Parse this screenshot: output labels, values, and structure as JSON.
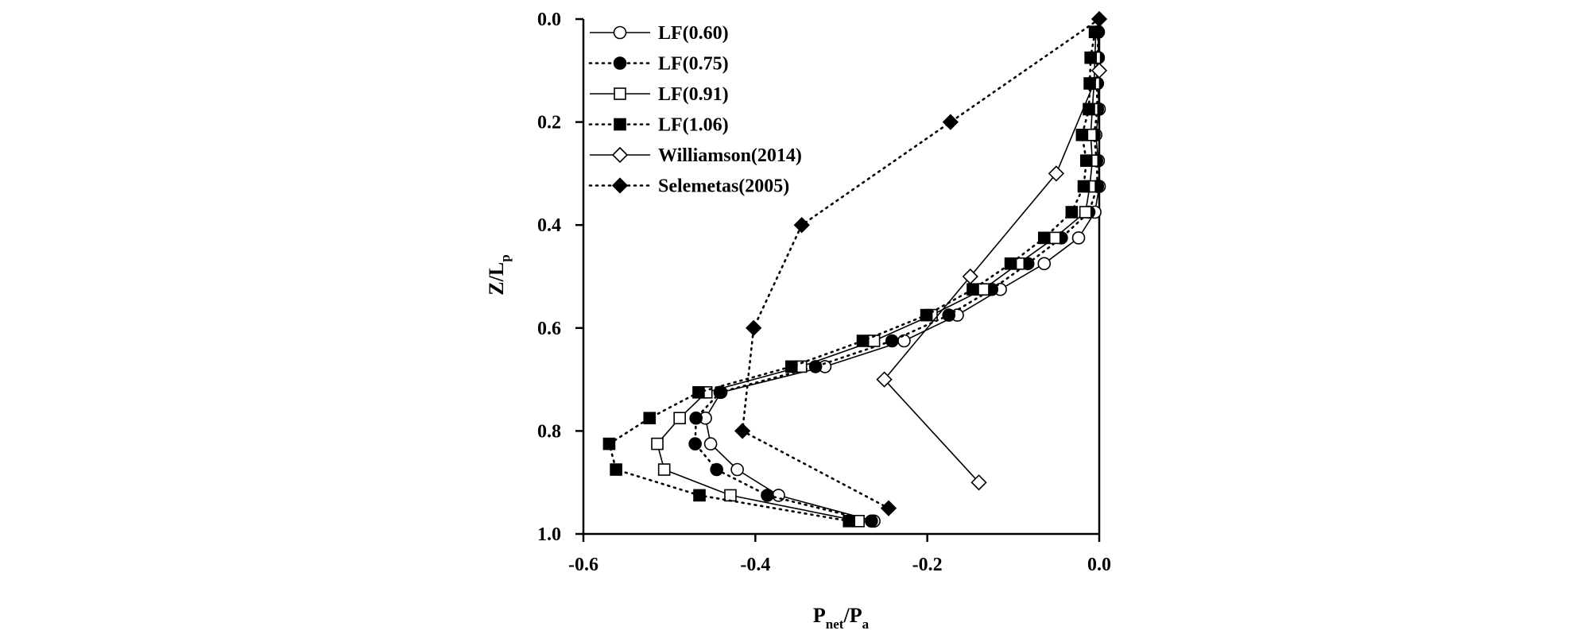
{
  "chart_data": {
    "type": "line",
    "title": "",
    "xlabel": {
      "main": "P",
      "sub1": "net",
      "mid": "/P",
      "sub2": "a"
    },
    "ylabel": {
      "main": "Z/L",
      "sub": "p"
    },
    "xlim": [
      -0.6,
      0.0
    ],
    "ylim": [
      0.0,
      1.0
    ],
    "y_inverted": true,
    "x_axis_position": "bottom",
    "y_axis_position": "left",
    "grid": false,
    "legend_position": "top-left",
    "xticks": [
      {
        "value": -0.6,
        "label": "-0.6"
      },
      {
        "value": -0.4,
        "label": "-0.4"
      },
      {
        "value": -0.2,
        "label": "-0.2"
      },
      {
        "value": 0.0,
        "label": "0.0"
      }
    ],
    "yticks": [
      {
        "value": 0.0,
        "label": "0.0"
      },
      {
        "value": 0.2,
        "label": "0.2"
      },
      {
        "value": 0.4,
        "label": "0.4"
      },
      {
        "value": 0.6,
        "label": "0.6"
      },
      {
        "value": 0.8,
        "label": "0.8"
      },
      {
        "value": 1.0,
        "label": "1.0"
      }
    ],
    "series": [
      {
        "name": "LF(0.60)",
        "line": "solid",
        "marker": "circle",
        "filled": false,
        "points": [
          [
            -0.001,
            0.025
          ],
          [
            -0.001,
            0.075
          ],
          [
            -0.002,
            0.125
          ],
          [
            0.0,
            0.175
          ],
          [
            -0.004,
            0.225
          ],
          [
            -0.001,
            0.275
          ],
          [
            0.0,
            0.325
          ],
          [
            -0.005,
            0.375
          ],
          [
            -0.024,
            0.425
          ],
          [
            -0.064,
            0.475
          ],
          [
            -0.115,
            0.525
          ],
          [
            -0.165,
            0.575
          ],
          [
            -0.227,
            0.625
          ],
          [
            -0.319,
            0.675
          ],
          [
            -0.44,
            0.725
          ],
          [
            -0.458,
            0.775
          ],
          [
            -0.452,
            0.825
          ],
          [
            -0.421,
            0.875
          ],
          [
            -0.373,
            0.925
          ],
          [
            -0.262,
            0.975
          ]
        ]
      },
      {
        "name": "LF(0.75)",
        "line": "dotted",
        "marker": "circle",
        "filled": true,
        "points": [
          [
            -0.001,
            0.025
          ],
          [
            -0.002,
            0.075
          ],
          [
            -0.003,
            0.125
          ],
          [
            -0.002,
            0.175
          ],
          [
            -0.006,
            0.225
          ],
          [
            -0.003,
            0.275
          ],
          [
            -0.002,
            0.325
          ],
          [
            -0.012,
            0.375
          ],
          [
            -0.044,
            0.425
          ],
          [
            -0.083,
            0.475
          ],
          [
            -0.125,
            0.525
          ],
          [
            -0.175,
            0.575
          ],
          [
            -0.241,
            0.625
          ],
          [
            -0.33,
            0.675
          ],
          [
            -0.441,
            0.725
          ],
          [
            -0.469,
            0.775
          ],
          [
            -0.47,
            0.825
          ],
          [
            -0.445,
            0.875
          ],
          [
            -0.386,
            0.925
          ],
          [
            -0.265,
            0.975
          ]
        ]
      },
      {
        "name": "LF(0.91)",
        "line": "solid",
        "marker": "square",
        "filled": false,
        "points": [
          [
            -0.004,
            0.025
          ],
          [
            -0.005,
            0.075
          ],
          [
            -0.006,
            0.125
          ],
          [
            -0.008,
            0.175
          ],
          [
            -0.01,
            0.225
          ],
          [
            -0.008,
            0.275
          ],
          [
            -0.011,
            0.325
          ],
          [
            -0.016,
            0.375
          ],
          [
            -0.052,
            0.425
          ],
          [
            -0.094,
            0.475
          ],
          [
            -0.135,
            0.525
          ],
          [
            -0.195,
            0.575
          ],
          [
            -0.262,
            0.625
          ],
          [
            -0.347,
            0.675
          ],
          [
            -0.457,
            0.725
          ],
          [
            -0.488,
            0.775
          ],
          [
            -0.514,
            0.825
          ],
          [
            -0.506,
            0.875
          ],
          [
            -0.429,
            0.925
          ],
          [
            -0.28,
            0.975
          ]
        ]
      },
      {
        "name": "LF(1.06)",
        "line": "dotted",
        "marker": "square",
        "filled": true,
        "points": [
          [
            -0.005,
            0.025
          ],
          [
            -0.01,
            0.075
          ],
          [
            -0.011,
            0.125
          ],
          [
            -0.012,
            0.175
          ],
          [
            -0.02,
            0.225
          ],
          [
            -0.015,
            0.275
          ],
          [
            -0.018,
            0.325
          ],
          [
            -0.032,
            0.375
          ],
          [
            -0.064,
            0.425
          ],
          [
            -0.103,
            0.475
          ],
          [
            -0.147,
            0.525
          ],
          [
            -0.201,
            0.575
          ],
          [
            -0.275,
            0.625
          ],
          [
            -0.358,
            0.675
          ],
          [
            -0.466,
            0.725
          ],
          [
            -0.523,
            0.775
          ],
          [
            -0.57,
            0.825
          ],
          [
            -0.562,
            0.875
          ],
          [
            -0.465,
            0.925
          ],
          [
            -0.291,
            0.975
          ]
        ]
      },
      {
        "name": "Williamson(2014)",
        "line": "solid",
        "marker": "diamond",
        "filled": false,
        "points": [
          [
            0.0,
            0.1
          ],
          [
            -0.05,
            0.3
          ],
          [
            -0.15,
            0.5
          ],
          [
            -0.25,
            0.7
          ],
          [
            -0.14,
            0.9
          ]
        ]
      },
      {
        "name": "Selemetas(2005)",
        "line": "dotted",
        "marker": "diamond",
        "filled": true,
        "points": [
          [
            0.0,
            0.0
          ],
          [
            -0.173,
            0.2
          ],
          [
            -0.346,
            0.4
          ],
          [
            -0.402,
            0.6
          ],
          [
            -0.415,
            0.8
          ],
          [
            -0.245,
            0.95
          ]
        ]
      }
    ]
  }
}
